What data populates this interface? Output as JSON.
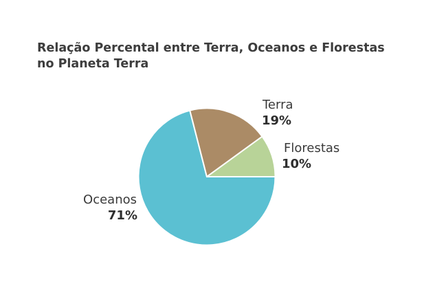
{
  "chart_data": {
    "type": "pie",
    "title_lines": [
      "Relação Percental entre Terra, Oceanos e Florestas",
      "no Planeta Terra"
    ],
    "slices": [
      {
        "label": "Oceanos",
        "value": 71,
        "value_label": "71%",
        "color": "#5bc0d2"
      },
      {
        "label": "Terra",
        "value": 19,
        "value_label": "19%",
        "color": "#ab8b66"
      },
      {
        "label": "Florestas",
        "value": 10,
        "value_label": "10%",
        "color": "#b8d398"
      }
    ]
  }
}
